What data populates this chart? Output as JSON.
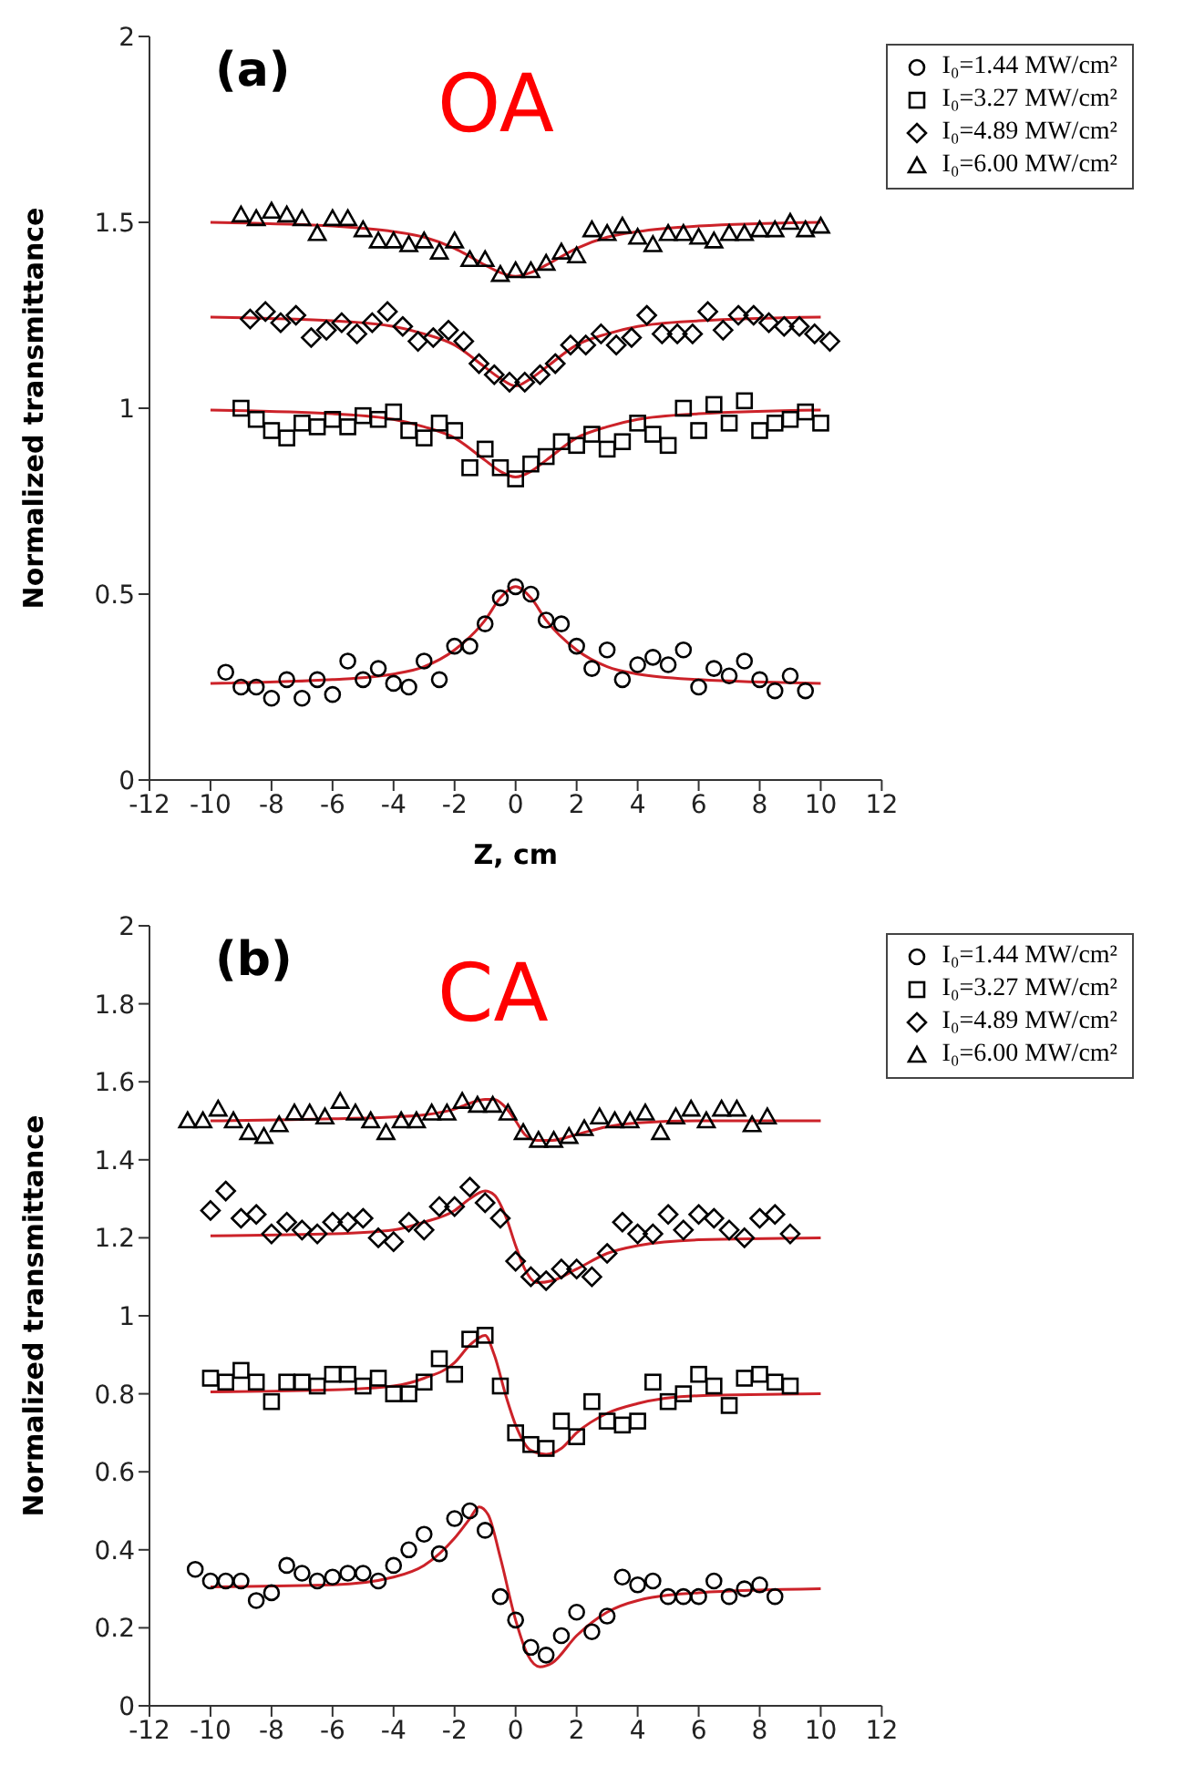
{
  "chart_data": [
    {
      "type": "scatter",
      "ylabel": "Normalized transmittance",
      "xlabel": "Z, cm",
      "annotations": [
        "(a)",
        "OA"
      ],
      "legend": "top right",
      "xlim": [
        -12,
        12
      ],
      "xticks": [
        -12,
        -10,
        -8,
        -6,
        -4,
        -2,
        0,
        2,
        4,
        6,
        8,
        10,
        12
      ],
      "ylim": [
        0,
        2
      ],
      "yticks": [
        0,
        0.5,
        1,
        1.5,
        2
      ],
      "series": [
        {
          "type": "scatter",
          "name": "I₀=1.44 MW/cm²",
          "color": "#000000",
          "marker": "circle",
          "x": [
            -9.5,
            -9,
            -8.5,
            -8,
            -7.5,
            -7,
            -6.5,
            -6,
            -5.5,
            -5,
            -4.5,
            -4,
            -3.5,
            -3,
            -2.5,
            -2,
            -1.5,
            -1,
            -0.5,
            0,
            0.5,
            1,
            1.5,
            2,
            2.5,
            3,
            3.5,
            4,
            4.5,
            5,
            5.5,
            6,
            6.5,
            7,
            7.5,
            8,
            8.5,
            9,
            9.5
          ],
          "values": [
            0.29,
            0.25,
            0.25,
            0.22,
            0.27,
            0.22,
            0.27,
            0.23,
            0.32,
            0.27,
            0.3,
            0.26,
            0.25,
            0.32,
            0.27,
            0.36,
            0.36,
            0.42,
            0.49,
            0.52,
            0.5,
            0.43,
            0.42,
            0.36,
            0.3,
            0.35,
            0.27,
            0.31,
            0.33,
            0.31,
            0.35,
            0.25,
            0.3,
            0.28,
            0.32,
            0.27,
            0.24,
            0.28,
            0.24
          ]
        },
        {
          "type": "scatter",
          "name": "I₀=3.27 MW/cm²",
          "color": "#000000",
          "marker": "square",
          "x": [
            -9,
            -8.5,
            -8,
            -7.5,
            -7,
            -6.5,
            -6,
            -5.5,
            -5,
            -4.5,
            -4,
            -3.5,
            -3,
            -2.5,
            -2,
            -1.5,
            -1,
            -0.5,
            0,
            0.5,
            1,
            1.5,
            2,
            2.5,
            3,
            3.5,
            4,
            4.5,
            5,
            5.5,
            6,
            6.5,
            7,
            7.5,
            8,
            8.5,
            9,
            9.5,
            10
          ],
          "values": [
            1.0,
            0.97,
            0.94,
            0.92,
            0.96,
            0.95,
            0.97,
            0.95,
            0.98,
            0.97,
            0.99,
            0.94,
            0.92,
            0.96,
            0.94,
            0.84,
            0.89,
            0.84,
            0.81,
            0.85,
            0.87,
            0.91,
            0.9,
            0.93,
            0.89,
            0.91,
            0.96,
            0.93,
            0.9,
            1.0,
            0.94,
            1.01,
            0.96,
            1.02,
            0.94,
            0.96,
            0.97,
            0.99,
            0.96
          ]
        },
        {
          "type": "scatter",
          "name": "I₀=4.89 MW/cm²",
          "color": "#000000",
          "marker": "diamond",
          "x": [
            -8.7,
            -8.2,
            -7.7,
            -7.2,
            -6.7,
            -6.2,
            -5.7,
            -5.2,
            -4.7,
            -4.2,
            -3.7,
            -3.2,
            -2.7,
            -2.2,
            -1.7,
            -1.2,
            -0.7,
            -0.2,
            0.3,
            0.8,
            1.3,
            1.8,
            2.3,
            2.8,
            3.3,
            3.8,
            4.3,
            4.8,
            5.3,
            5.8,
            6.3,
            6.8,
            7.3,
            7.8,
            8.3,
            8.8,
            9.3,
            9.8,
            10.3
          ],
          "values": [
            1.24,
            1.26,
            1.23,
            1.25,
            1.19,
            1.21,
            1.23,
            1.2,
            1.23,
            1.26,
            1.22,
            1.18,
            1.19,
            1.21,
            1.18,
            1.12,
            1.09,
            1.07,
            1.07,
            1.09,
            1.12,
            1.17,
            1.17,
            1.2,
            1.17,
            1.19,
            1.25,
            1.2,
            1.2,
            1.2,
            1.26,
            1.21,
            1.25,
            1.25,
            1.23,
            1.22,
            1.22,
            1.2,
            1.18
          ]
        },
        {
          "type": "scatter",
          "name": "I₀=6.00 MW/cm²",
          "color": "#000000",
          "marker": "triangle",
          "x": [
            -9,
            -8.5,
            -8,
            -7.5,
            -7,
            -6.5,
            -6,
            -5.5,
            -5,
            -4.5,
            -4,
            -3.5,
            -3,
            -2.5,
            -2,
            -1.5,
            -1,
            -0.5,
            0,
            0.5,
            1,
            1.5,
            2,
            2.5,
            3,
            3.5,
            4,
            4.5,
            5,
            5.5,
            6,
            6.5,
            7,
            7.5,
            8,
            8.5,
            9,
            9.5,
            10
          ],
          "values": [
            1.52,
            1.51,
            1.53,
            1.52,
            1.51,
            1.47,
            1.51,
            1.51,
            1.48,
            1.45,
            1.45,
            1.44,
            1.45,
            1.42,
            1.45,
            1.4,
            1.4,
            1.36,
            1.37,
            1.37,
            1.39,
            1.42,
            1.41,
            1.48,
            1.47,
            1.49,
            1.46,
            1.44,
            1.47,
            1.47,
            1.46,
            1.45,
            1.47,
            1.47,
            1.48,
            1.48,
            1.5,
            1.48,
            1.49
          ]
        },
        {
          "type": "line",
          "color": "#cc2229",
          "x": [
            -10,
            -6,
            -4,
            -3,
            -2,
            -1,
            -0.5,
            0,
            0.5,
            1,
            2,
            3,
            4,
            6,
            10
          ],
          "values": [
            0.26,
            0.27,
            0.285,
            0.305,
            0.35,
            0.43,
            0.49,
            0.52,
            0.49,
            0.43,
            0.35,
            0.305,
            0.285,
            0.27,
            0.26
          ]
        },
        {
          "type": "line",
          "color": "#cc2229",
          "x": [
            -10,
            -6,
            -4,
            -3,
            -2,
            -1,
            -0.5,
            0,
            0.5,
            1,
            2,
            3,
            4,
            6,
            10
          ],
          "values": [
            0.995,
            0.985,
            0.97,
            0.95,
            0.92,
            0.86,
            0.83,
            0.815,
            0.83,
            0.86,
            0.92,
            0.95,
            0.97,
            0.985,
            0.995
          ]
        },
        {
          "type": "line",
          "color": "#cc2229",
          "x": [
            -10,
            -6,
            -4,
            -3,
            -2,
            -1,
            -0.5,
            0,
            0.5,
            1,
            2,
            3,
            4,
            6,
            10
          ],
          "values": [
            1.245,
            1.235,
            1.22,
            1.2,
            1.17,
            1.11,
            1.08,
            1.06,
            1.08,
            1.11,
            1.17,
            1.2,
            1.22,
            1.235,
            1.245
          ]
        },
        {
          "type": "line",
          "color": "#cc2229",
          "x": [
            -10,
            -6,
            -4,
            -3,
            -2,
            -1,
            -0.5,
            0,
            0.5,
            1,
            2,
            3,
            4,
            6,
            10
          ],
          "values": [
            1.5,
            1.49,
            1.475,
            1.46,
            1.43,
            1.385,
            1.365,
            1.355,
            1.365,
            1.385,
            1.43,
            1.46,
            1.475,
            1.49,
            1.5
          ]
        }
      ]
    },
    {
      "type": "scatter",
      "ylabel": "Normalized transmittance",
      "annotations": [
        "(b)",
        "CA"
      ],
      "legend": "top right",
      "xlim": [
        -12,
        12
      ],
      "xticks": [
        -12,
        -10,
        -8,
        -6,
        -4,
        -2,
        0,
        2,
        4,
        6,
        8,
        10,
        12
      ],
      "ylim": [
        0,
        2
      ],
      "yticks": [
        0,
        0.2,
        0.4,
        0.6,
        0.8,
        1,
        1.2,
        1.4,
        1.6,
        1.8,
        2
      ],
      "series": [
        {
          "type": "scatter",
          "name": "I₀=1.44 MW/cm²",
          "color": "#000000",
          "marker": "circle",
          "x": [
            -10.5,
            -10,
            -9.5,
            -9,
            -8.5,
            -8,
            -7.5,
            -7,
            -6.5,
            -6,
            -5.5,
            -5,
            -4.5,
            -4,
            -3.5,
            -3,
            -2.5,
            -2,
            -1.5,
            -1,
            -0.5,
            0,
            0.5,
            1,
            1.5,
            2,
            2.5,
            3,
            3.5,
            4,
            4.5,
            5,
            5.5,
            6,
            6.5,
            7,
            7.5,
            8,
            8.5
          ],
          "values": [
            0.35,
            0.32,
            0.32,
            0.32,
            0.27,
            0.29,
            0.36,
            0.34,
            0.32,
            0.33,
            0.34,
            0.34,
            0.32,
            0.36,
            0.4,
            0.44,
            0.39,
            0.48,
            0.5,
            0.45,
            0.28,
            0.22,
            0.15,
            0.13,
            0.18,
            0.24,
            0.19,
            0.23,
            0.33,
            0.31,
            0.32,
            0.28,
            0.28,
            0.28,
            0.32,
            0.28,
            0.3,
            0.31,
            0.28
          ]
        },
        {
          "type": "scatter",
          "name": "I₀=3.27 MW/cm²",
          "color": "#000000",
          "marker": "square",
          "x": [
            -10,
            -9.5,
            -9,
            -8.5,
            -8,
            -7.5,
            -7,
            -6.5,
            -6,
            -5.5,
            -5,
            -4.5,
            -4,
            -3.5,
            -3,
            -2.5,
            -2,
            -1.5,
            -1,
            -0.5,
            0,
            0.5,
            1,
            1.5,
            2,
            2.5,
            3,
            3.5,
            4,
            4.5,
            5,
            5.5,
            6,
            6.5,
            7,
            7.5,
            8,
            8.5,
            9
          ],
          "values": [
            0.84,
            0.83,
            0.86,
            0.83,
            0.78,
            0.83,
            0.83,
            0.82,
            0.85,
            0.85,
            0.82,
            0.84,
            0.8,
            0.8,
            0.83,
            0.89,
            0.85,
            0.94,
            0.95,
            0.82,
            0.7,
            0.67,
            0.66,
            0.73,
            0.69,
            0.78,
            0.73,
            0.72,
            0.73,
            0.83,
            0.78,
            0.8,
            0.85,
            0.82,
            0.77,
            0.84,
            0.85,
            0.83,
            0.82
          ]
        },
        {
          "type": "scatter",
          "name": "I₀=4.89 MW/cm²",
          "color": "#000000",
          "marker": "diamond",
          "x": [
            -10,
            -9.5,
            -9,
            -8.5,
            -8,
            -7.5,
            -7,
            -6.5,
            -6,
            -5.5,
            -5,
            -4.5,
            -4,
            -3.5,
            -3,
            -2.5,
            -2,
            -1.5,
            -1,
            -0.5,
            0,
            0.5,
            1,
            1.5,
            2,
            2.5,
            3,
            3.5,
            4,
            4.5,
            5,
            5.5,
            6,
            6.5,
            7,
            7.5,
            8,
            8.5,
            9
          ],
          "values": [
            1.27,
            1.32,
            1.25,
            1.26,
            1.21,
            1.24,
            1.22,
            1.21,
            1.24,
            1.24,
            1.25,
            1.2,
            1.19,
            1.24,
            1.22,
            1.28,
            1.28,
            1.33,
            1.29,
            1.25,
            1.14,
            1.1,
            1.09,
            1.12,
            1.12,
            1.1,
            1.16,
            1.24,
            1.21,
            1.21,
            1.26,
            1.22,
            1.26,
            1.25,
            1.22,
            1.2,
            1.25,
            1.26,
            1.21
          ]
        },
        {
          "type": "scatter",
          "name": "I₀=6.00 MW/cm²",
          "color": "#000000",
          "marker": "triangle",
          "x": [
            -10.75,
            -10.25,
            -9.75,
            -9.25,
            -8.75,
            -8.25,
            -7.75,
            -7.25,
            -6.75,
            -6.25,
            -5.75,
            -5.25,
            -4.75,
            -4.25,
            -3.75,
            -3.25,
            -2.75,
            -2.25,
            -1.75,
            -1.25,
            -0.75,
            -0.25,
            0.25,
            0.75,
            1.25,
            1.75,
            2.25,
            2.75,
            3.25,
            3.75,
            4.25,
            4.75,
            5.25,
            5.75,
            6.25,
            6.75,
            7.25,
            7.75,
            8.25
          ],
          "values": [
            1.5,
            1.5,
            1.53,
            1.5,
            1.47,
            1.46,
            1.49,
            1.52,
            1.52,
            1.51,
            1.55,
            1.52,
            1.5,
            1.47,
            1.5,
            1.5,
            1.52,
            1.52,
            1.55,
            1.54,
            1.54,
            1.52,
            1.47,
            1.45,
            1.45,
            1.46,
            1.48,
            1.51,
            1.5,
            1.5,
            1.52,
            1.47,
            1.51,
            1.53,
            1.5,
            1.53,
            1.53,
            1.49,
            1.51
          ]
        },
        {
          "type": "line",
          "color": "#cc2229",
          "x": [
            -10,
            -6,
            -4,
            -3,
            -2,
            -1.5,
            -1.2,
            -0.9,
            -0.5,
            0,
            0.4,
            0.8,
            1.2,
            2,
            3,
            4,
            6,
            10
          ],
          "values": [
            0.305,
            0.31,
            0.33,
            0.36,
            0.43,
            0.48,
            0.51,
            0.49,
            0.38,
            0.22,
            0.13,
            0.1,
            0.11,
            0.18,
            0.24,
            0.27,
            0.29,
            0.3
          ]
        },
        {
          "type": "line",
          "color": "#cc2229",
          "x": [
            -10,
            -6,
            -4,
            -3,
            -2,
            -1.5,
            -1,
            -0.7,
            -0.3,
            0,
            0.5,
            1,
            1.5,
            2,
            3,
            4,
            6,
            10
          ],
          "values": [
            0.805,
            0.81,
            0.82,
            0.84,
            0.88,
            0.925,
            0.95,
            0.9,
            0.79,
            0.72,
            0.655,
            0.645,
            0.66,
            0.7,
            0.75,
            0.775,
            0.795,
            0.8
          ]
        },
        {
          "type": "line",
          "color": "#cc2229",
          "x": [
            -10,
            -6,
            -4,
            -3,
            -2,
            -1.5,
            -1,
            -0.7,
            -0.3,
            0,
            0.3,
            0.7,
            1.2,
            2,
            3,
            4,
            6,
            10
          ],
          "values": [
            1.205,
            1.21,
            1.22,
            1.24,
            1.27,
            1.3,
            1.32,
            1.31,
            1.25,
            1.18,
            1.12,
            1.085,
            1.09,
            1.12,
            1.16,
            1.18,
            1.195,
            1.2
          ]
        },
        {
          "type": "line",
          "color": "#cc2229",
          "x": [
            -10,
            -6,
            -4,
            -3,
            -2,
            -1.5,
            -1,
            -0.7,
            -0.4,
            0,
            0.3,
            0.7,
            1.2,
            2,
            3,
            4,
            6,
            10
          ],
          "values": [
            1.5,
            1.505,
            1.51,
            1.515,
            1.53,
            1.545,
            1.555,
            1.555,
            1.54,
            1.5,
            1.465,
            1.45,
            1.45,
            1.465,
            1.485,
            1.495,
            1.5,
            1.5
          ]
        }
      ]
    }
  ]
}
